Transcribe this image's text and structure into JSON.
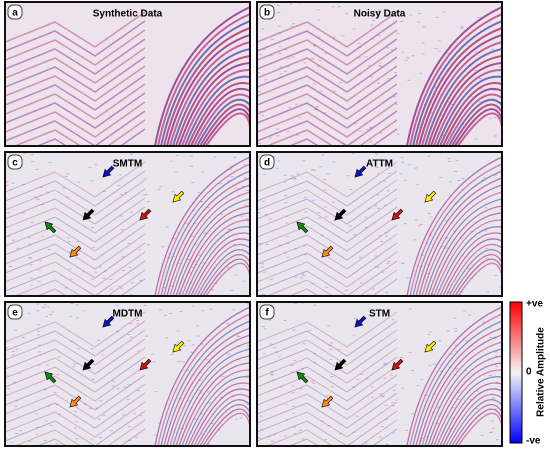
{
  "panels": [
    {
      "label": "a",
      "title": "Synthetic Data"
    },
    {
      "label": "b",
      "title": "Noisy Data"
    },
    {
      "label": "c",
      "title": "SMTM"
    },
    {
      "label": "d",
      "title": "ATTM"
    },
    {
      "label": "e",
      "title": "MDTM"
    },
    {
      "label": "f",
      "title": "STM"
    }
  ],
  "colorbar": {
    "top": "+ve",
    "middle": "0",
    "bottom": "-ve",
    "title": "Relative Amplitude"
  }
}
